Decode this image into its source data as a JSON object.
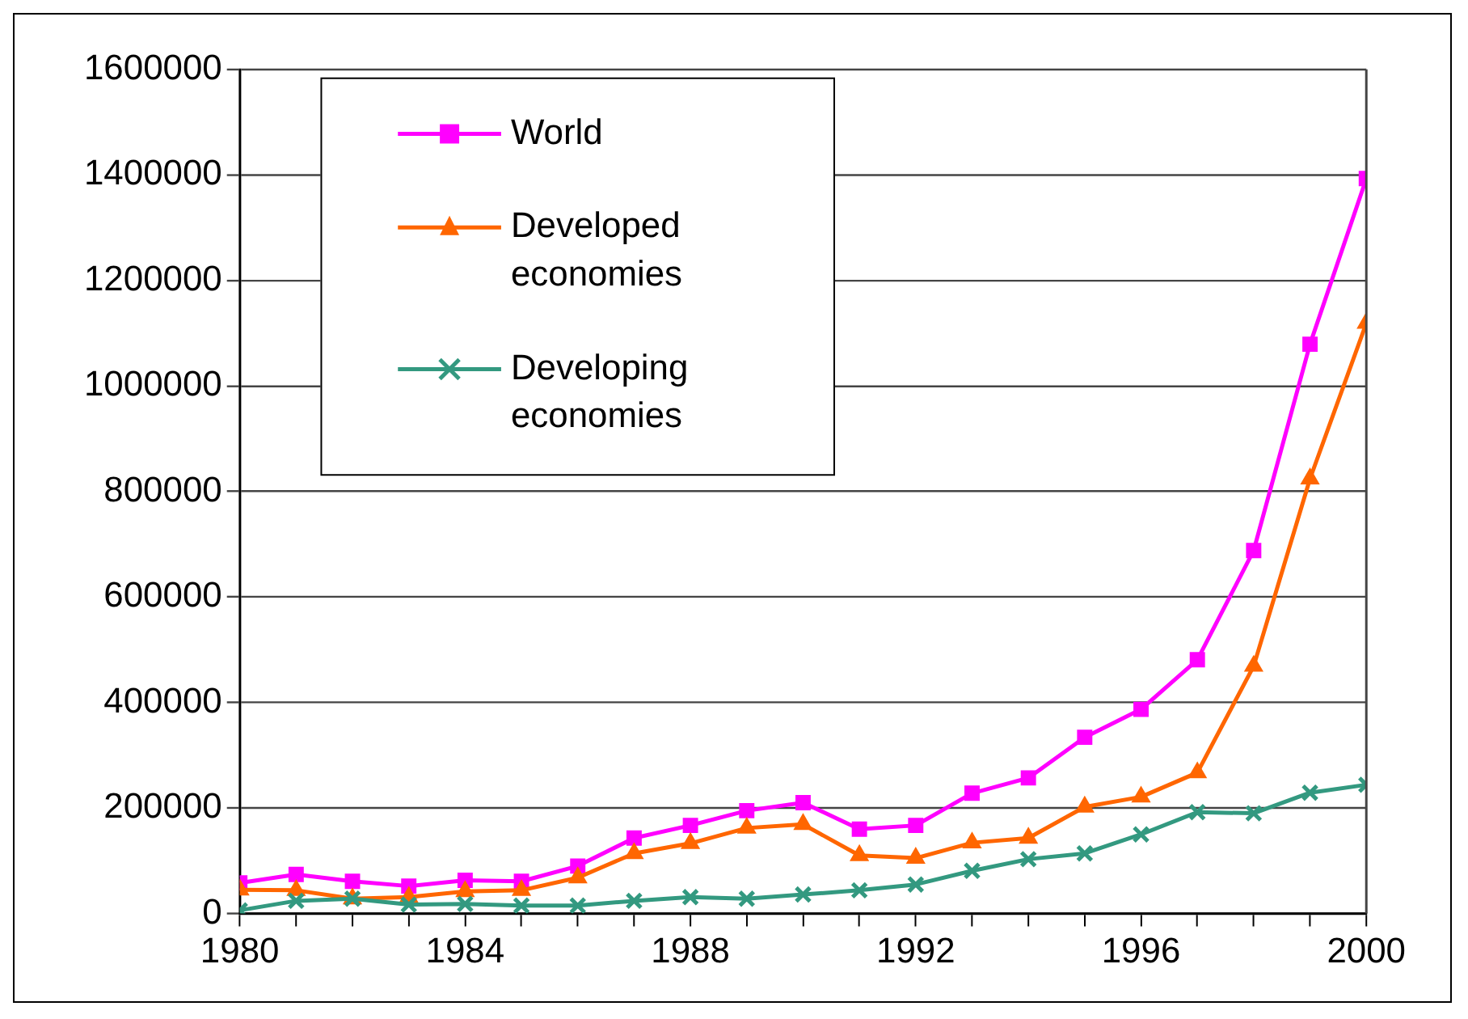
{
  "chart_data": {
    "type": "line",
    "x": [
      1980,
      1981,
      1982,
      1983,
      1984,
      1985,
      1986,
      1987,
      1988,
      1989,
      1990,
      1991,
      1992,
      1993,
      1994,
      1995,
      1996,
      1997,
      1998,
      1999,
      2000
    ],
    "series": [
      {
        "name": "World",
        "color": "#ff00ff",
        "marker": "square",
        "values": [
          58000,
          74000,
          61000,
          52000,
          63000,
          61000,
          90000,
          143000,
          167000,
          195000,
          210000,
          160000,
          167000,
          228000,
          257000,
          334000,
          387000,
          481000,
          688000,
          1079000,
          1393000
        ]
      },
      {
        "name": "Developed economies",
        "color": "#ff6600",
        "marker": "triangle",
        "values": [
          45000,
          44000,
          28000,
          31000,
          42000,
          44000,
          68000,
          114000,
          133000,
          162000,
          169000,
          110000,
          105000,
          134000,
          143000,
          202000,
          221000,
          267000,
          469000,
          824000,
          1119000
        ]
      },
      {
        "name": "Developing economies",
        "color": "#339980",
        "marker": "cross",
        "values": [
          6000,
          24000,
          28000,
          17000,
          18000,
          15000,
          15000,
          24000,
          31000,
          28000,
          36000,
          44000,
          55000,
          81000,
          103000,
          114000,
          150000,
          192000,
          190000,
          229000,
          244000
        ]
      }
    ],
    "xlim": [
      1980,
      2000
    ],
    "xticks": [
      1980,
      {
        "value": 1981,
        "label": null
      },
      {
        "value": 1982,
        "label": null
      },
      {
        "value": 1983,
        "label": null
      },
      1984,
      {
        "value": 1985,
        "label": null
      },
      {
        "value": 1986,
        "label": null
      },
      {
        "value": 1987,
        "label": null
      },
      1988,
      {
        "value": 1989,
        "label": null
      },
      {
        "value": 1990,
        "label": null
      },
      {
        "value": 1991,
        "label": null
      },
      1992,
      {
        "value": 1993,
        "label": null
      },
      {
        "value": 1994,
        "label": null
      },
      {
        "value": 1995,
        "label": null
      },
      1996,
      {
        "value": 1997,
        "label": null
      },
      {
        "value": 1998,
        "label": null
      },
      {
        "value": 1999,
        "label": null
      },
      2000
    ],
    "ylim": [
      0,
      1600000
    ],
    "yticks": [
      0,
      200000,
      400000,
      600000,
      800000,
      1000000,
      1200000,
      1400000,
      1600000
    ],
    "grid": "y",
    "legend": "top left",
    "line_style": "solid"
  }
}
